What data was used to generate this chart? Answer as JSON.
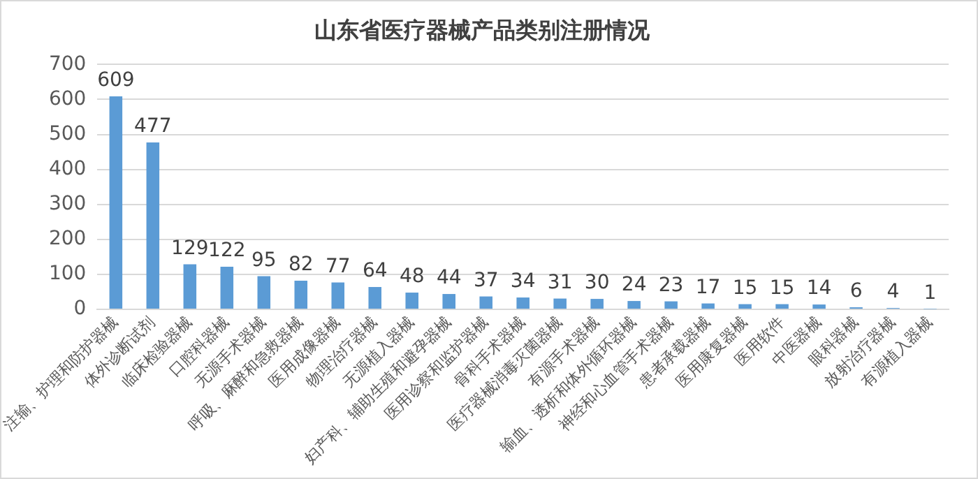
{
  "chart_data": {
    "type": "bar",
    "title": "山东省医疗器械产品类别注册情况",
    "categories": [
      "注输、护理和防护器械",
      "体外诊断试剂",
      "临床检验器械",
      "口腔科器械",
      "无源手术器械",
      "呼吸、麻醉和急救器械",
      "医用成像器械",
      "物理治疗器械",
      "无源植入器械",
      "妇产科、辅助生殖和避孕器械",
      "医用诊察和监护器械",
      "骨科手术器械",
      "医疗器械消毒灭菌器械",
      "有源手术器械",
      "输血、透析和体外循环器械",
      "神经和心血管手术器械",
      "患者承载器械",
      "医用康复器械",
      "医用软件",
      "中医器械",
      "眼科器械",
      "放射治疗器械",
      "有源植入器械"
    ],
    "values": [
      609,
      477,
      129,
      122,
      95,
      82,
      77,
      64,
      48,
      44,
      37,
      34,
      31,
      30,
      24,
      23,
      17,
      15,
      15,
      14,
      6,
      4,
      1
    ],
    "color": "#5b9bd5",
    "ylim": [
      0,
      700
    ],
    "yticks": [
      0,
      100,
      200,
      300,
      400,
      500,
      600,
      700
    ],
    "grid": "y",
    "data_labels": true,
    "legend": false
  }
}
